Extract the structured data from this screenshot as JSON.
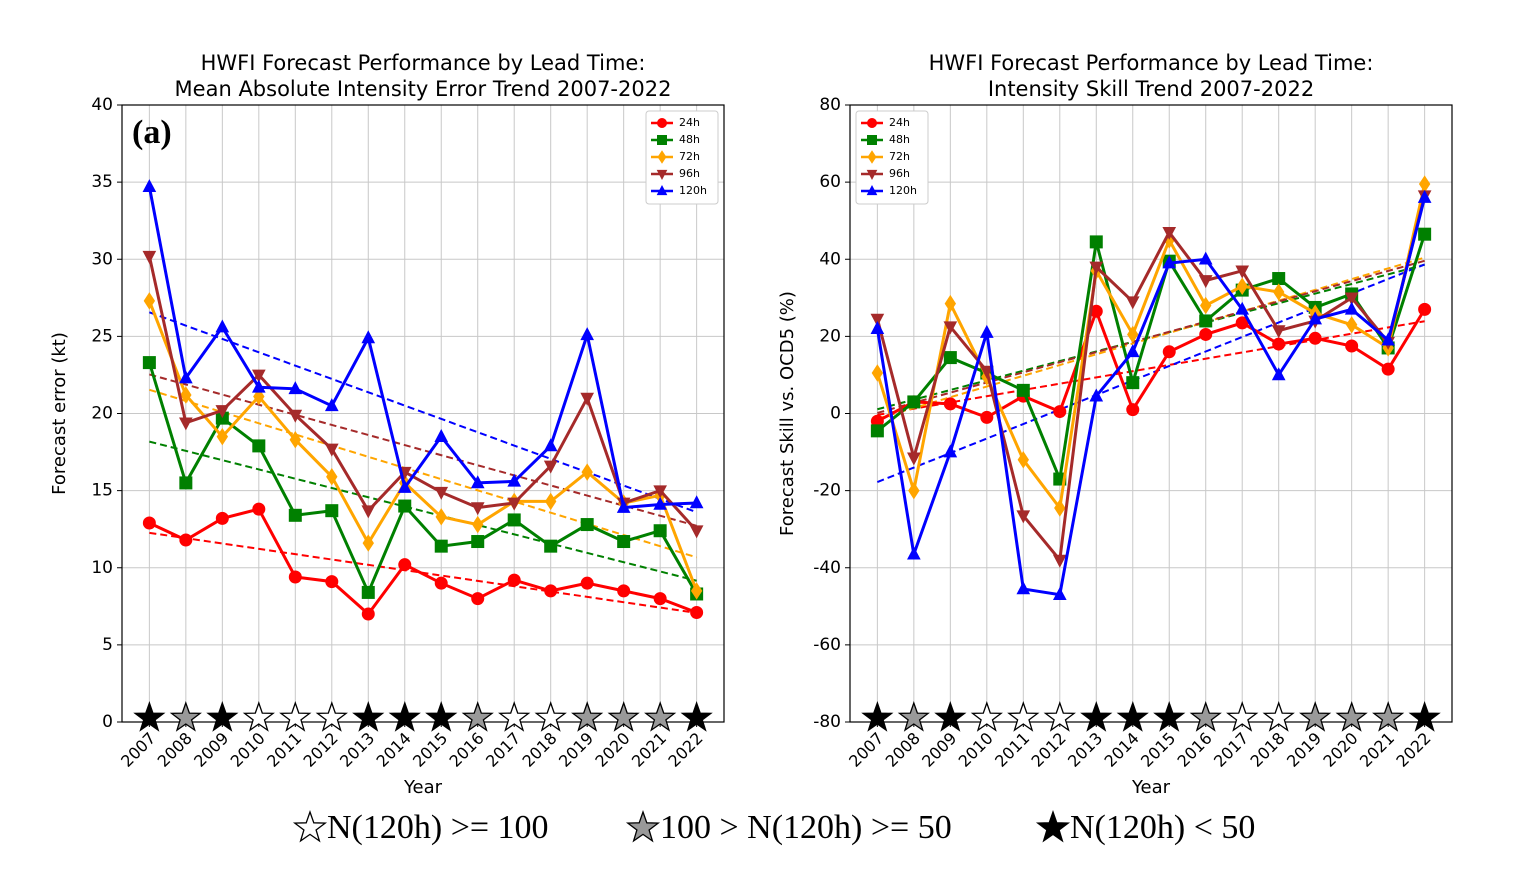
{
  "chart_data": [
    {
      "type": "line",
      "panel_label": "(a)",
      "title": [
        "HWFI Forecast Performance by Lead Time:",
        "Mean Absolute Intensity Error Trend 2007-2022"
      ],
      "x_label": "Year",
      "y_label": "Forecast error (kt)",
      "x": [
        2007,
        2008,
        2009,
        2010,
        2011,
        2012,
        2013,
        2014,
        2015,
        2016,
        2017,
        2018,
        2019,
        2020,
        2021,
        2022
      ],
      "xlim": [
        2006.25,
        2022.75
      ],
      "xticks": [
        2007,
        2008,
        2009,
        2010,
        2011,
        2012,
        2013,
        2014,
        2015,
        2016,
        2017,
        2018,
        2019,
        2020,
        2021,
        2022
      ],
      "ylim": [
        0,
        40
      ],
      "yticks": [
        0,
        5,
        10,
        15,
        20,
        25,
        30,
        35,
        40
      ],
      "grid": true,
      "legend": "upper right",
      "trend_lines": true,
      "series": [
        {
          "name": "24h",
          "color": "#ff0000",
          "marker": "circle",
          "values": [
            12.9,
            11.8,
            13.2,
            13.8,
            9.4,
            9.1,
            7.0,
            10.2,
            9.0,
            8.0,
            9.2,
            8.5,
            9.0,
            8.5,
            8.0,
            7.1
          ]
        },
        {
          "name": "48h",
          "color": "#008000",
          "marker": "square",
          "values": [
            23.3,
            15.5,
            19.7,
            17.9,
            13.4,
            13.7,
            8.4,
            14.0,
            11.4,
            11.7,
            13.1,
            11.4,
            12.8,
            11.7,
            12.4,
            8.3
          ]
        },
        {
          "name": "72h",
          "color": "#ffa500",
          "marker": "diamond",
          "values": [
            27.3,
            21.2,
            18.5,
            21.1,
            18.3,
            15.9,
            11.6,
            15.5,
            13.3,
            12.8,
            14.3,
            14.3,
            16.2,
            14.2,
            14.7,
            8.5
          ]
        },
        {
          "name": "96h",
          "color": "#a52a2a",
          "marker": "triangle-down",
          "values": [
            30.2,
            19.4,
            20.2,
            22.5,
            19.9,
            17.7,
            13.7,
            16.2,
            14.9,
            13.9,
            14.2,
            16.6,
            21.0,
            14.2,
            15.0,
            12.4
          ]
        },
        {
          "name": "120h",
          "color": "#0000ff",
          "marker": "triangle-up",
          "values": [
            34.7,
            22.3,
            25.6,
            21.7,
            21.6,
            20.5,
            24.9,
            15.2,
            18.5,
            15.5,
            15.6,
            17.9,
            25.1,
            13.9,
            14.1,
            14.2
          ]
        }
      ]
    },
    {
      "type": "line",
      "panel_label": "(b)",
      "title": [
        "HWFI Forecast Performance by Lead Time:",
        "Intensity Skill Trend 2007-2022"
      ],
      "x_label": "Year",
      "y_label": "Forecast Skill vs. OCD5 (%)",
      "x": [
        2007,
        2008,
        2009,
        2010,
        2011,
        2012,
        2013,
        2014,
        2015,
        2016,
        2017,
        2018,
        2019,
        2020,
        2021,
        2022
      ],
      "xlim": [
        2006.25,
        2022.75
      ],
      "xticks": [
        2007,
        2008,
        2009,
        2010,
        2011,
        2012,
        2013,
        2014,
        2015,
        2016,
        2017,
        2018,
        2019,
        2020,
        2021,
        2022
      ],
      "ylim": [
        -80,
        80
      ],
      "yticks": [
        -80,
        -60,
        -40,
        -20,
        0,
        20,
        40,
        60,
        80
      ],
      "grid": true,
      "legend": "upper left",
      "trend_lines": true,
      "series": [
        {
          "name": "24h",
          "color": "#ff0000",
          "marker": "circle",
          "values": [
            -2,
            3,
            2.5,
            -1,
            4.5,
            0.5,
            26.5,
            1,
            16,
            20.5,
            23.5,
            18,
            19.5,
            17.5,
            11.5,
            27
          ]
        },
        {
          "name": "48h",
          "color": "#008000",
          "marker": "square",
          "values": [
            -4.5,
            3,
            14.5,
            10.5,
            6,
            -17,
            44.5,
            8,
            39.5,
            24,
            32,
            35,
            27.5,
            31,
            17,
            46.5
          ]
        },
        {
          "name": "72h",
          "color": "#ffa500",
          "marker": "diamond",
          "values": [
            10.5,
            -20,
            28.5,
            9.5,
            -12,
            -24.5,
            37,
            20.5,
            45,
            28,
            33,
            31.5,
            26,
            23,
            17,
            59.5
          ]
        },
        {
          "name": "96h",
          "color": "#a52a2a",
          "marker": "triangle-down",
          "values": [
            24.5,
            -11.5,
            22.5,
            11,
            -26.5,
            -38,
            38,
            29,
            47,
            34.5,
            37,
            21.5,
            24,
            30,
            18.5,
            56.5
          ]
        },
        {
          "name": "120h",
          "color": "#0000ff",
          "marker": "triangle-up",
          "values": [
            22,
            -36.5,
            -10,
            21,
            -45.5,
            -47,
            4.5,
            16,
            39,
            40,
            27,
            10,
            24.5,
            27,
            19,
            56
          ]
        }
      ]
    }
  ],
  "sample_legend": [
    {
      "label": "N(120h) >= 100",
      "color": "#ffffff"
    },
    {
      "label": "100 > N(120h) >= 50",
      "color": "#999999"
    },
    {
      "label": "N(120h) < 50",
      "color": "#000000"
    }
  ],
  "sample_class": [
    2,
    1,
    2,
    0,
    0,
    0,
    2,
    2,
    2,
    1,
    0,
    0,
    1,
    1,
    1,
    2
  ]
}
